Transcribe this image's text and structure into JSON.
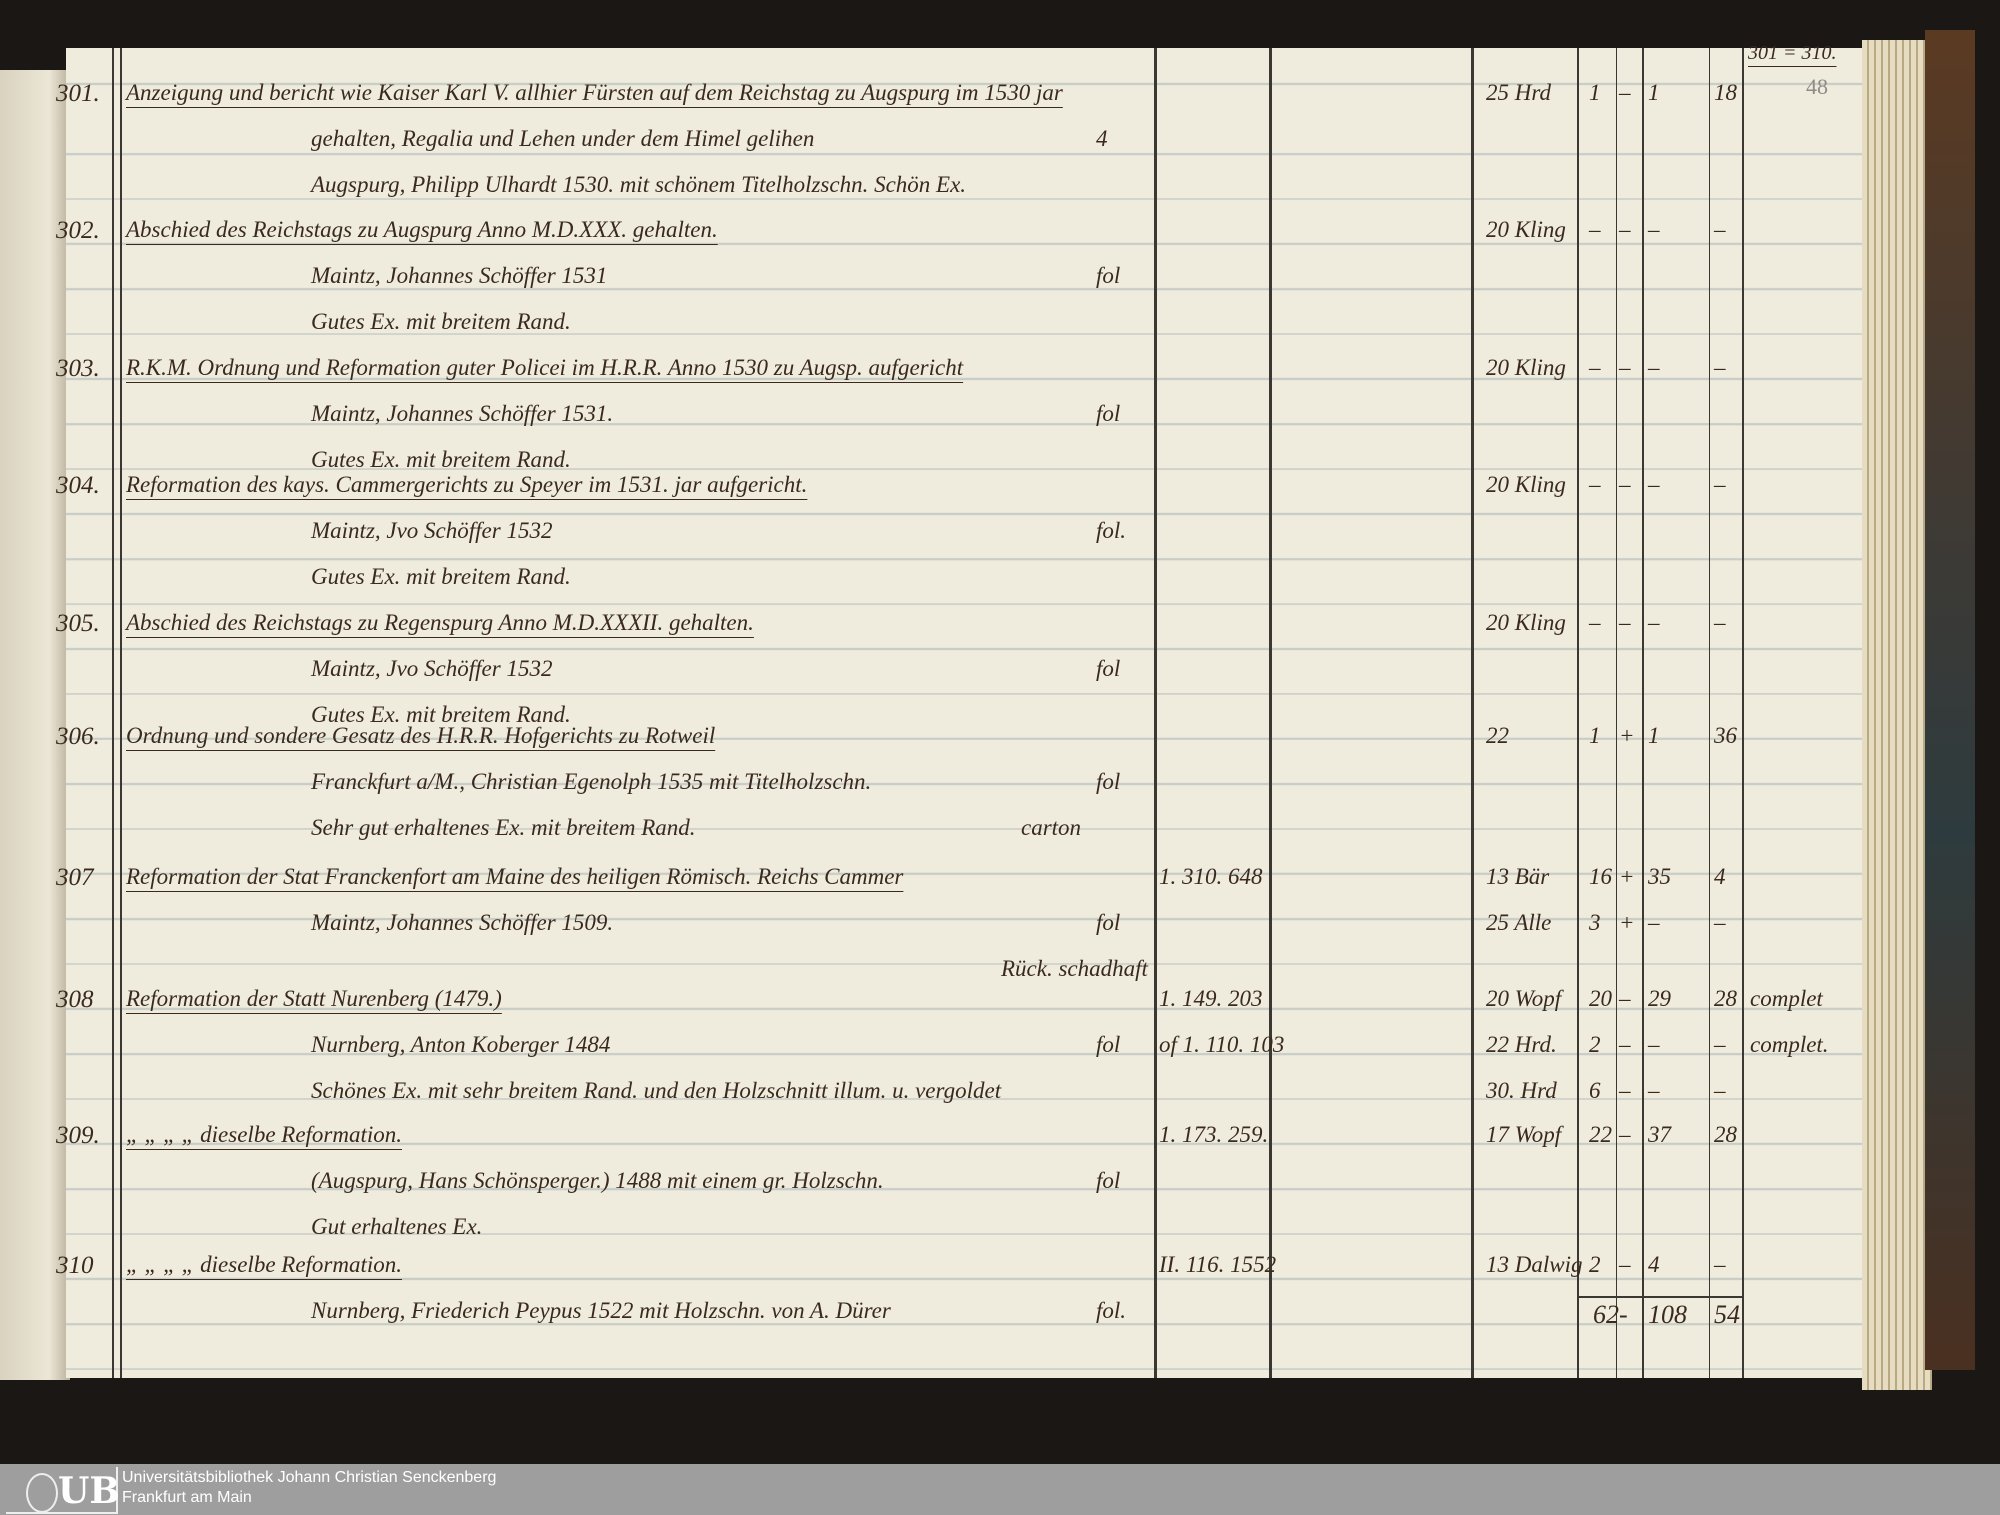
{
  "header": {
    "range": "301 = 310.",
    "pencil_folio": "48"
  },
  "entries": [
    {
      "num": "301.",
      "lines": [
        "Anzeigung und bericht wie Kaiser Karl V. allhier Fürsten auf dem Reichstag zu Augspurg im 1530 jar",
        "gehalten, Regalia und Lehen under dem Himel gelihen",
        "Augspurg, Philipp Ulhardt 1530. mit schönem Titelholzschn. Schön Ex."
      ],
      "format": "4",
      "format_line": 1,
      "note": "",
      "register": [],
      "rows": [
        [
          "25 Hrd",
          "1",
          "–",
          "1",
          "18",
          ""
        ]
      ]
    },
    {
      "num": "302.",
      "lines": [
        "Abschied des Reichstags zu Augspurg Anno M.D.XXX. gehalten.",
        "Maintz, Johannes Schöffer 1531",
        "Gutes Ex. mit breitem Rand."
      ],
      "format": "fol",
      "format_line": 1,
      "note": "",
      "register": [],
      "rows": [
        [
          "20 Kling",
          "–",
          "–",
          "–",
          "–",
          ""
        ]
      ]
    },
    {
      "num": "303.",
      "lines": [
        "R.K.M. Ordnung und Reformation guter Policei im H.R.R. Anno 1530 zu Augsp. aufgericht",
        "Maintz, Johannes Schöffer 1531.",
        "Gutes Ex. mit breitem Rand."
      ],
      "format": "fol",
      "format_line": 1,
      "note": "",
      "register": [],
      "rows": [
        [
          "20 Kling",
          "–",
          "–",
          "–",
          "–",
          ""
        ]
      ]
    },
    {
      "num": "304.",
      "lines": [
        "Reformation des kays. Cammergerichts zu Speyer im 1531. jar aufgericht.",
        "Maintz, Jvo Schöffer 1532",
        "Gutes Ex. mit breitem Rand."
      ],
      "format": "fol.",
      "format_line": 1,
      "note": "",
      "register": [],
      "rows": [
        [
          "20 Kling",
          "–",
          "–",
          "–",
          "–",
          ""
        ]
      ]
    },
    {
      "num": "305.",
      "lines": [
        "Abschied des Reichstags zu Regenspurg Anno M.D.XXXII. gehalten.",
        "Maintz, Jvo Schöffer 1532",
        "Gutes Ex. mit breitem Rand."
      ],
      "format": "fol",
      "format_line": 1,
      "note": "",
      "register": [],
      "rows": [
        [
          "20 Kling",
          "–",
          "–",
          "–",
          "–",
          ""
        ]
      ]
    },
    {
      "num": "306.",
      "lines": [
        "Ordnung und sondere Gesatz des H.R.R. Hofgerichts zu Rotweil",
        "Franckfurt a/M., Christian Egenolph 1535 mit Titelholzschn.",
        "Sehr gut erhaltenes Ex. mit breitem Rand."
      ],
      "format": "fol",
      "format_line": 1,
      "note": "carton",
      "register": [],
      "rows": [
        [
          "22",
          "1",
          "+",
          "1",
          "36",
          ""
        ]
      ]
    },
    {
      "num": "307",
      "lines": [
        "Reformation der Stat Franckenfort am Maine des heiligen Römisch. Reichs Cammer",
        "Maintz, Johannes Schöffer 1509.",
        ""
      ],
      "format": "fol",
      "format_line": 1,
      "note": "Rück. schadhaft",
      "register": [
        "1. 310. 648"
      ],
      "rows": [
        [
          "13 Bär",
          "16",
          "+",
          "35",
          "4",
          ""
        ],
        [
          "25 Alle",
          "3",
          "+",
          "–",
          "–",
          ""
        ]
      ]
    },
    {
      "num": "308",
      "lines": [
        "Reformation der Statt Nurenberg (1479.)",
        "Nurnberg, Anton Koberger 1484",
        "Schönes Ex. mit sehr breitem Rand. und den Holzschnitt illum. u. vergoldet"
      ],
      "format": "fol",
      "format_line": 1,
      "note": "",
      "register": [
        "1. 149. 203",
        "of 1. 110. 103"
      ],
      "rows": [
        [
          "20 Wopf",
          "20",
          "–",
          "29",
          "28",
          "complet"
        ],
        [
          "22 Hrd.",
          "2",
          "–",
          "–",
          "–",
          "complet."
        ],
        [
          "30. Hrd",
          "6",
          "–",
          "–",
          "–",
          ""
        ]
      ]
    },
    {
      "num": "309.",
      "lines": [
        "„ „ „ „ dieselbe Reformation.",
        "(Augspurg, Hans Schönsperger.) 1488   mit einem gr. Holzschn.",
        "Gut erhaltenes Ex."
      ],
      "format": "fol",
      "format_line": 1,
      "note": "",
      "register": [
        "1. 173. 259."
      ],
      "rows": [
        [
          "17 Wopf",
          "22",
          "–",
          "37",
          "28",
          ""
        ]
      ]
    },
    {
      "num": "310",
      "lines": [
        "„ „ „ „ dieselbe Reformation.",
        "Nurnberg, Friederich Peypus 1522 mit Holzschn. von A. Dürer",
        ""
      ],
      "format": "fol.",
      "format_line": 1,
      "note": "",
      "register": [
        "II. 116. 1552"
      ],
      "rows": [
        [
          "13 Dalwig",
          "2",
          "–",
          "4",
          "–",
          ""
        ]
      ]
    }
  ],
  "totals": [
    "62",
    "-",
    "108",
    "54"
  ],
  "footer": {
    "logo_text": "UB",
    "line1": "Universitätsbibliothek Johann Christian Senckenberg",
    "line2": "Frankfurt am Main"
  },
  "colors": {
    "ink": "#3a2a1e",
    "paper": "#efebdd",
    "rule": "#3b3833",
    "footer": "#9e9e9e"
  }
}
